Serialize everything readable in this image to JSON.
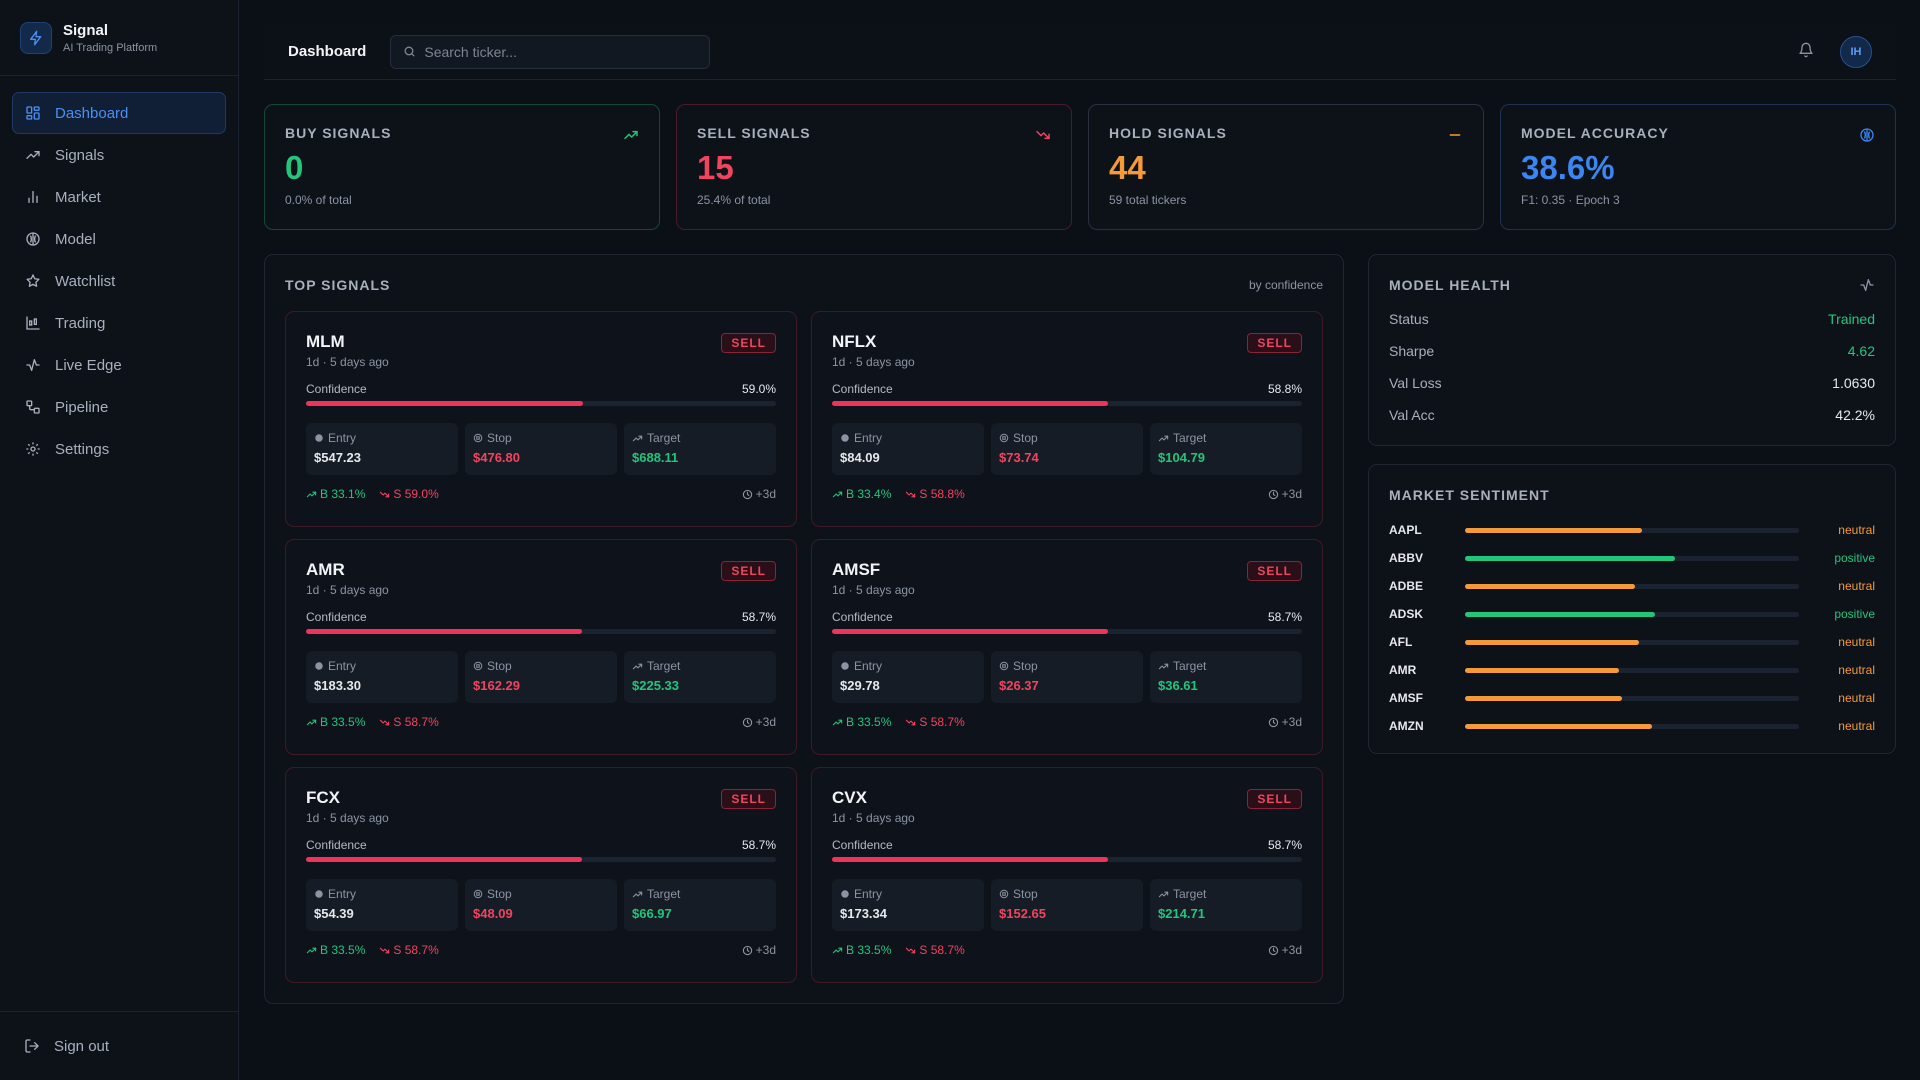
{
  "app": {
    "name": "Signal",
    "tagline": "AI Trading Platform"
  },
  "sidebar": {
    "items": [
      {
        "label": "Dashboard",
        "icon": "grid-icon",
        "active": true
      },
      {
        "label": "Signals",
        "icon": "trending-up-icon"
      },
      {
        "label": "Market",
        "icon": "bar-chart-icon"
      },
      {
        "label": "Model",
        "icon": "brain-icon"
      },
      {
        "label": "Watchlist",
        "icon": "star-icon"
      },
      {
        "label": "Trading",
        "icon": "candlestick-icon"
      },
      {
        "label": "Live Edge",
        "icon": "activity-icon"
      },
      {
        "label": "Pipeline",
        "icon": "workflow-icon"
      },
      {
        "label": "Settings",
        "icon": "gear-icon"
      }
    ],
    "signout": "Sign out"
  },
  "header": {
    "title": "Dashboard",
    "search_placeholder": "Search ticker...",
    "avatar": "IH"
  },
  "stats": {
    "buy": {
      "label": "BUY SIGNALS",
      "value": "0",
      "sub": "0.0% of total"
    },
    "sell": {
      "label": "SELL SIGNALS",
      "value": "15",
      "sub": "25.4% of total"
    },
    "hold": {
      "label": "HOLD SIGNALS",
      "value": "44",
      "sub": "59 total tickers"
    },
    "accuracy": {
      "label": "MODEL ACCURACY",
      "value": "38.6%",
      "sub": "F1: 0.35 · Epoch 3"
    }
  },
  "top_signals": {
    "title": "TOP SIGNALS",
    "sort": "by confidence",
    "labels": {
      "confidence": "Confidence",
      "entry": "Entry",
      "stop": "Stop",
      "target": "Target"
    },
    "cards": [
      {
        "ticker": "MLM",
        "meta": "1d · 5 days ago",
        "badge": "SELL",
        "confidence": "59.0%",
        "conf_frac": 0.59,
        "entry": "$547.23",
        "stop": "$476.80",
        "target": "$688.11",
        "buy_prob": "B 33.1%",
        "sell_prob": "S 59.0%",
        "horizon": "+3d"
      },
      {
        "ticker": "NFLX",
        "meta": "1d · 5 days ago",
        "badge": "SELL",
        "confidence": "58.8%",
        "conf_frac": 0.588,
        "entry": "$84.09",
        "stop": "$73.74",
        "target": "$104.79",
        "buy_prob": "B 33.4%",
        "sell_prob": "S 58.8%",
        "horizon": "+3d"
      },
      {
        "ticker": "AMR",
        "meta": "1d · 5 days ago",
        "badge": "SELL",
        "confidence": "58.7%",
        "conf_frac": 0.587,
        "entry": "$183.30",
        "stop": "$162.29",
        "target": "$225.33",
        "buy_prob": "B 33.5%",
        "sell_prob": "S 58.7%",
        "horizon": "+3d"
      },
      {
        "ticker": "AMSF",
        "meta": "1d · 5 days ago",
        "badge": "SELL",
        "confidence": "58.7%",
        "conf_frac": 0.587,
        "entry": "$29.78",
        "stop": "$26.37",
        "target": "$36.61",
        "buy_prob": "B 33.5%",
        "sell_prob": "S 58.7%",
        "horizon": "+3d"
      },
      {
        "ticker": "FCX",
        "meta": "1d · 5 days ago",
        "badge": "SELL",
        "confidence": "58.7%",
        "conf_frac": 0.587,
        "entry": "$54.39",
        "stop": "$48.09",
        "target": "$66.97",
        "buy_prob": "B 33.5%",
        "sell_prob": "S 58.7%",
        "horizon": "+3d"
      },
      {
        "ticker": "CVX",
        "meta": "1d · 5 days ago",
        "badge": "SELL",
        "confidence": "58.7%",
        "conf_frac": 0.587,
        "entry": "$173.34",
        "stop": "$152.65",
        "target": "$214.71",
        "buy_prob": "B 33.5%",
        "sell_prob": "S 58.7%",
        "horizon": "+3d"
      }
    ]
  },
  "model_health": {
    "title": "MODEL HEALTH",
    "rows": [
      {
        "label": "Status",
        "value": "Trained",
        "color": "#22c57a"
      },
      {
        "label": "Sharpe",
        "value": "4.62",
        "color": "#22c57a"
      },
      {
        "label": "Val Loss",
        "value": "1.0630",
        "color": "#e6e8ec"
      },
      {
        "label": "Val Acc",
        "value": "42.2%",
        "color": "#e6e8ec"
      }
    ]
  },
  "market_sentiment": {
    "title": "MARKET SENTIMENT",
    "rows": [
      {
        "ticker": "AAPL",
        "label": "neutral",
        "score": 0.53
      },
      {
        "ticker": "ABBV",
        "label": "positive",
        "score": 0.63
      },
      {
        "ticker": "ADBE",
        "label": "neutral",
        "score": 0.51
      },
      {
        "ticker": "ADSK",
        "label": "positive",
        "score": 0.57
      },
      {
        "ticker": "AFL",
        "label": "neutral",
        "score": 0.52
      },
      {
        "ticker": "AMR",
        "label": "neutral",
        "score": 0.46
      },
      {
        "ticker": "AMSF",
        "label": "neutral",
        "score": 0.47
      },
      {
        "ticker": "AMZN",
        "label": "neutral",
        "score": 0.56
      }
    ]
  },
  "colors": {
    "buy": "#22c57a",
    "sell": "#f0445f",
    "hold": "#f59a3a",
    "accent": "#3b86f0",
    "neutral": "#f59a3a",
    "positive": "#22c57a"
  }
}
